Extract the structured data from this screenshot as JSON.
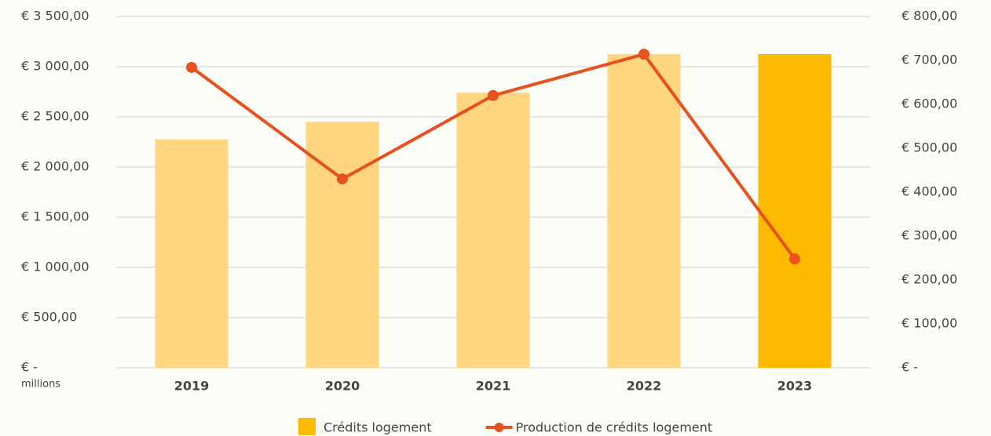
{
  "chart_data": {
    "type": "bar_line",
    "categories": [
      "2019",
      "2020",
      "2021",
      "2022",
      "2023"
    ],
    "series": [
      {
        "name": "Crédits logement",
        "type": "bar",
        "color": "#fbb900",
        "colors": [
          "#ffd67f",
          "#ffd67f",
          "#ffd67f",
          "#ffd67f",
          "#fbb900"
        ],
        "values": [
          2275,
          2450,
          2740,
          3125,
          3125
        ]
      },
      {
        "name": "Production de crédits logement",
        "type": "line",
        "axis": "y2",
        "color": "#e8501e",
        "values": [
          684,
          430,
          620,
          714,
          248
        ]
      }
    ],
    "ylim": [
      0,
      3500
    ],
    "yticks": [
      {
        "value": 0,
        "label": "€ -"
      },
      {
        "value": 500,
        "label": "€ 500,00"
      },
      {
        "value": 1000,
        "label": "€ 1 000,00"
      },
      {
        "value": 1500,
        "label": "€ 1 500,00"
      },
      {
        "value": 2000,
        "label": "€ 2 000,00"
      },
      {
        "value": 2500,
        "label": "€ 2 500,00"
      },
      {
        "value": 3000,
        "label": "€ 3 000,00"
      },
      {
        "value": 3500,
        "label": "€ 3 500,00"
      }
    ],
    "y_unit": "millions",
    "y2lim": [
      0,
      800
    ],
    "y2ticks": [
      {
        "value": 0,
        "label": "€ -"
      },
      {
        "value": 100,
        "label": "€ 100,00"
      },
      {
        "value": 200,
        "label": "€ 200,00"
      },
      {
        "value": 300,
        "label": "€ 300,00"
      },
      {
        "value": 400,
        "label": "€ 400,00"
      },
      {
        "value": 500,
        "label": "€ 500,00"
      },
      {
        "value": 600,
        "label": "€ 600,00"
      },
      {
        "value": 700,
        "label": "€ 700,00"
      },
      {
        "value": 800,
        "label": "€ 800,00"
      }
    ],
    "grid": true,
    "legend": "bottom"
  }
}
